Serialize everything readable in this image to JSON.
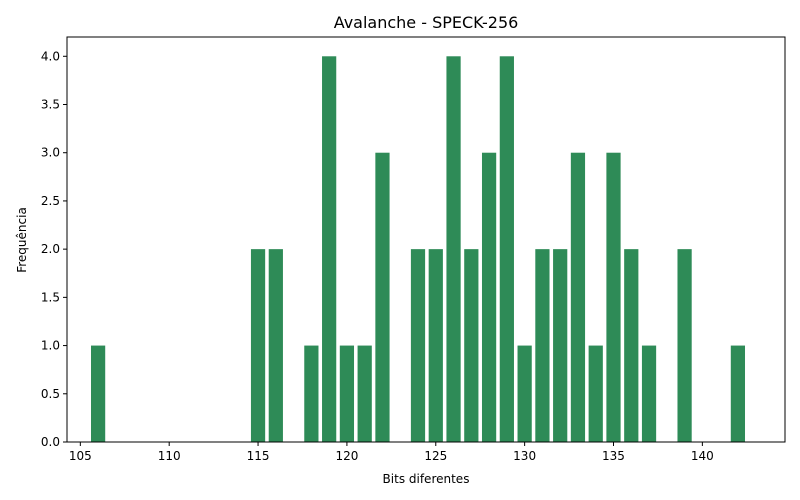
{
  "chart_data": {
    "type": "bar",
    "title": "Avalanche - SPECK-256",
    "xlabel": "Bits diferentes",
    "ylabel": "Frequência",
    "x": [
      106,
      115,
      116,
      118,
      119,
      120,
      121,
      122,
      124,
      125,
      126,
      127,
      128,
      129,
      130,
      131,
      132,
      133,
      134,
      135,
      136,
      137,
      139,
      142
    ],
    "values": [
      1,
      2,
      2,
      1,
      4,
      1,
      1,
      3,
      2,
      2,
      4,
      2,
      3,
      4,
      1,
      2,
      2,
      3,
      1,
      3,
      2,
      1,
      2,
      1
    ],
    "xlim": [
      104.25,
      144.65
    ],
    "ylim": [
      0,
      4.2
    ],
    "xticks": [
      105,
      110,
      115,
      120,
      125,
      130,
      135,
      140
    ],
    "xtick_labels": [
      "105",
      "110",
      "115",
      "120",
      "125",
      "130",
      "135",
      "140"
    ],
    "yticks": [
      0,
      0.5,
      1,
      1.5,
      2,
      2.5,
      3,
      3.5,
      4
    ],
    "ytick_labels": [
      "0.0",
      "0.5",
      "1.0",
      "1.5",
      "2.0",
      "2.5",
      "3.0",
      "3.5",
      "4.0"
    ],
    "bar_color": "#2e8b57",
    "grid": false
  }
}
